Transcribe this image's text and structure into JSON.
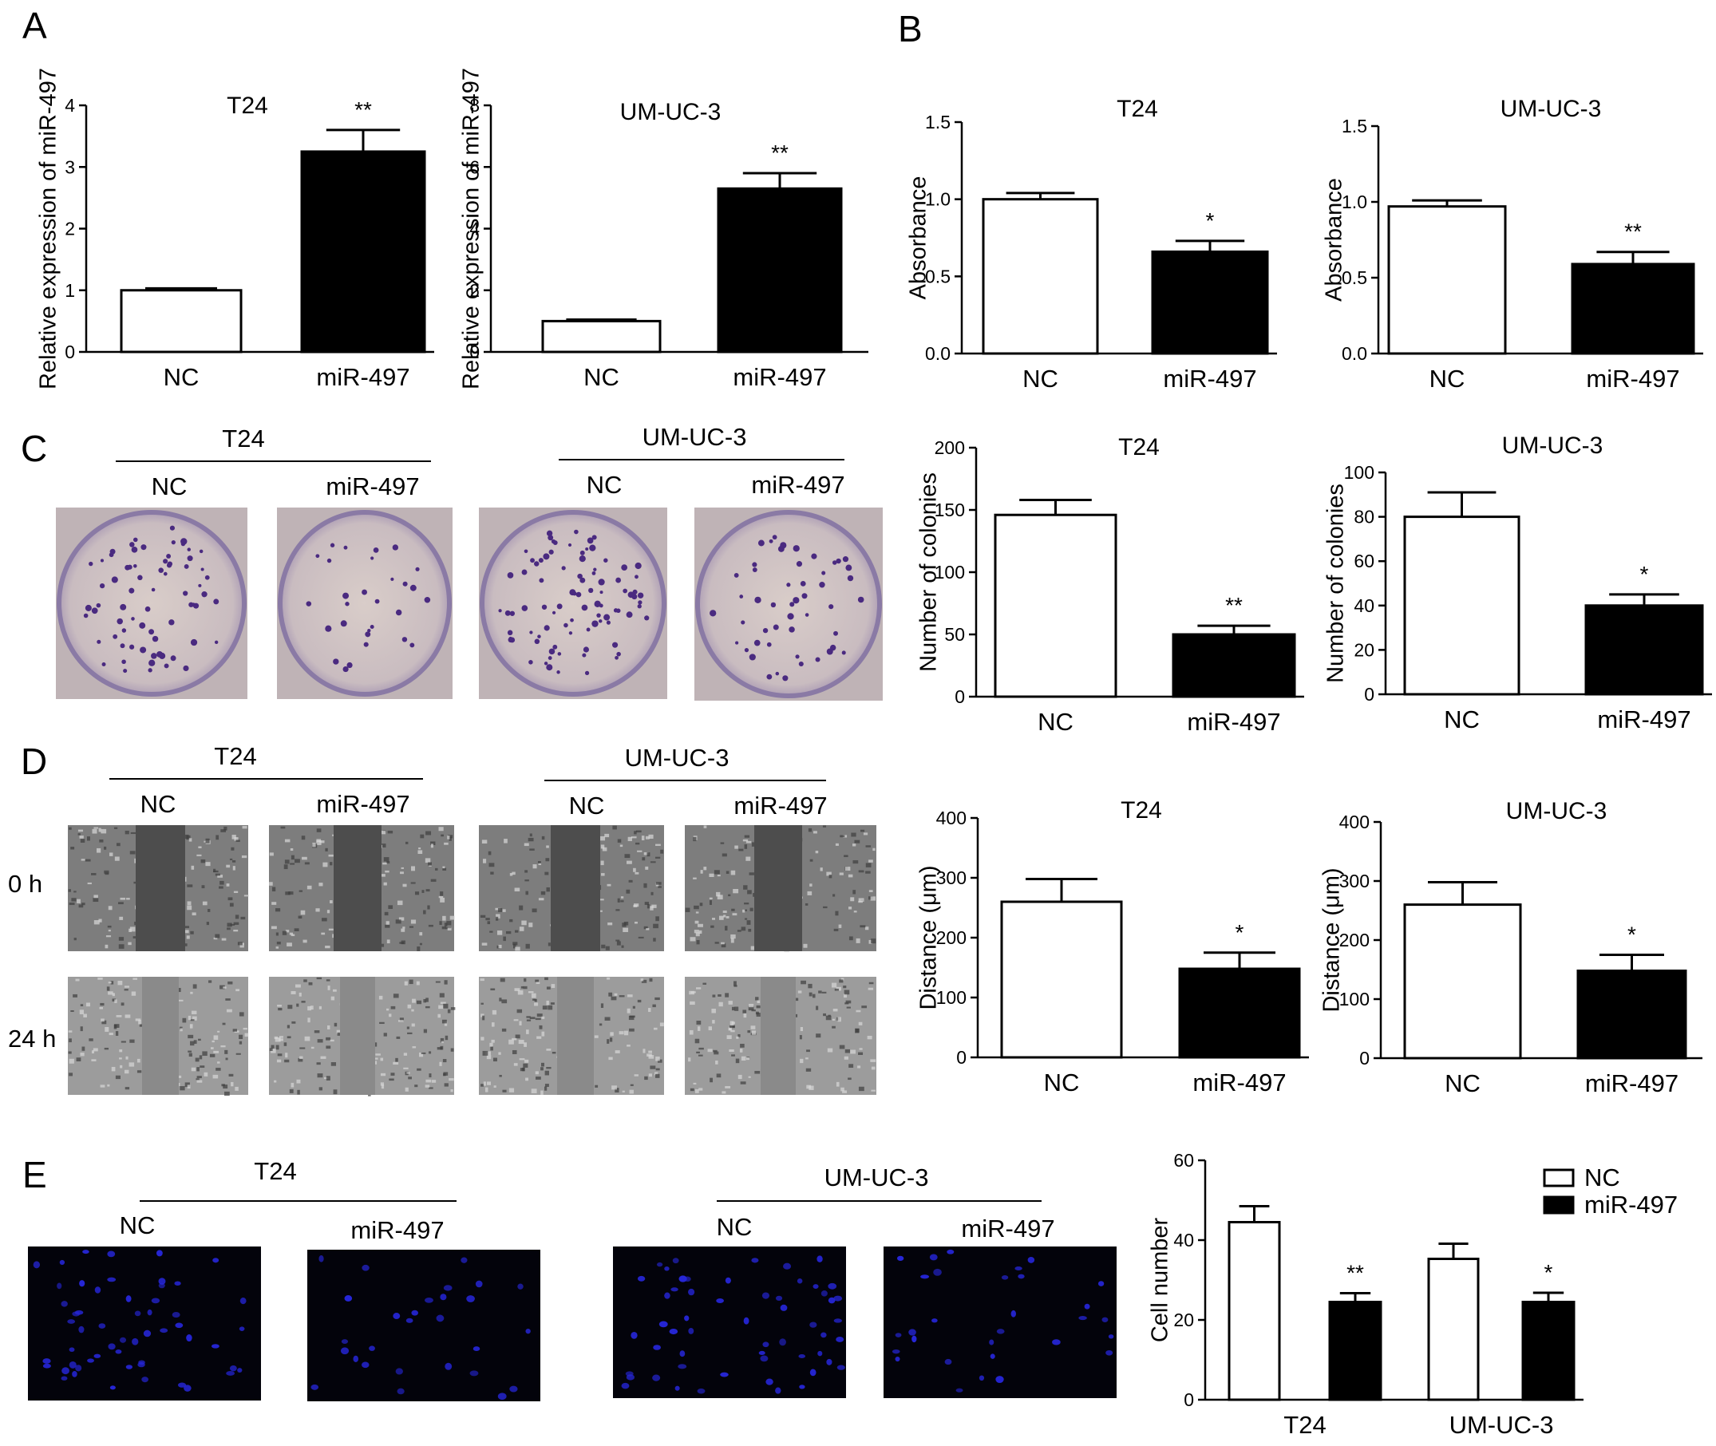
{
  "panels": {
    "A": "A",
    "B": "B",
    "C": "C",
    "D": "D",
    "E": "E"
  },
  "image_labels": {
    "C": {
      "group1": "T24",
      "group2": "UM-UC-3",
      "nc1": "NC",
      "mir1": "miR-497",
      "nc2": "NC",
      "mir2": "miR-497"
    },
    "D": {
      "group1": "T24",
      "group2": "UM-UC-3",
      "nc1": "NC",
      "mir1": "miR-497",
      "nc2": "NC",
      "mir2": "miR-497",
      "row1": "0 h",
      "row2": "24 h"
    },
    "E": {
      "group1": "T24",
      "group2": "UM-UC-3",
      "nc1": "NC",
      "mir1": "miR-497",
      "nc2": "NC",
      "mir2": "miR-497"
    }
  },
  "colors": {
    "nc_fill": "#ffffff",
    "mir_fill": "#000000",
    "colony_well": "#cfc3c6",
    "colony_dot": "#4a2a80",
    "wound_cells": "#7a7a7a",
    "wound_gap": "#4d4d4d",
    "fluor_bg": "#03030b",
    "fluor_nuclei": "#2626d8"
  },
  "chart_data": [
    {
      "type": "bar",
      "title": "T24",
      "ylabel": "Relative expression of miR-497",
      "categories": [
        "NC",
        "miR-497"
      ],
      "values": [
        1.0,
        3.25
      ],
      "errors": [
        0.03,
        0.35
      ],
      "significance": [
        "",
        "**"
      ],
      "ylim": [
        0,
        4
      ],
      "yticks": [
        0,
        1,
        2,
        3,
        4
      ]
    },
    {
      "type": "bar",
      "title": "UM-UC-3",
      "ylabel": "Relative expression of miR-497",
      "categories": [
        "NC",
        "miR-497"
      ],
      "values": [
        1.0,
        5.3
      ],
      "errors": [
        0.05,
        0.5
      ],
      "significance": [
        "",
        "**"
      ],
      "ylim": [
        0,
        8
      ],
      "yticks": [
        0,
        2,
        4,
        6,
        8
      ]
    },
    {
      "type": "bar",
      "title": "T24",
      "ylabel": "Absorbance",
      "categories": [
        "NC",
        "miR-497"
      ],
      "values": [
        1.0,
        0.66
      ],
      "errors": [
        0.04,
        0.07
      ],
      "significance": [
        "",
        "*"
      ],
      "ylim": [
        0,
        1.5
      ],
      "yticks": [
        "0.0",
        "0.5",
        "1.0",
        "1.5"
      ]
    },
    {
      "type": "bar",
      "title": "UM-UC-3",
      "ylabel": "Absorbance",
      "categories": [
        "NC",
        "miR-497"
      ],
      "values": [
        0.97,
        0.59
      ],
      "errors": [
        0.04,
        0.08
      ],
      "significance": [
        "",
        "**"
      ],
      "ylim": [
        0,
        1.5
      ],
      "yticks": [
        "0.0",
        "0.5",
        "1.0",
        "1.5"
      ]
    },
    {
      "type": "bar",
      "title": "T24",
      "ylabel": "Number of colonies",
      "categories": [
        "NC",
        "miR-497"
      ],
      "values": [
        146,
        50
      ],
      "errors": [
        12,
        7
      ],
      "significance": [
        "",
        "**"
      ],
      "ylim": [
        0,
        200
      ],
      "yticks": [
        0,
        50,
        100,
        150,
        200
      ]
    },
    {
      "type": "bar",
      "title": "UM-UC-3",
      "ylabel": "Number of colonies",
      "categories": [
        "NC",
        "miR-497"
      ],
      "values": [
        80,
        40
      ],
      "errors": [
        11,
        5
      ],
      "significance": [
        "",
        "*"
      ],
      "ylim": [
        0,
        100
      ],
      "yticks": [
        0,
        20,
        40,
        60,
        80,
        100
      ]
    },
    {
      "type": "bar",
      "title": "T24",
      "ylabel": "Distance (μm)",
      "categories": [
        "NC",
        "miR-497"
      ],
      "values": [
        260,
        148
      ],
      "errors": [
        38,
        27
      ],
      "significance": [
        "",
        "*"
      ],
      "ylim": [
        0,
        400
      ],
      "yticks": [
        0,
        100,
        200,
        300,
        400
      ]
    },
    {
      "type": "bar",
      "title": "UM-UC-3",
      "ylabel": "Distance (μm)",
      "categories": [
        "NC",
        "miR-497"
      ],
      "values": [
        260,
        148
      ],
      "errors": [
        38,
        27
      ],
      "significance": [
        "",
        "*"
      ],
      "ylim": [
        0,
        400
      ],
      "yticks": [
        0,
        100,
        200,
        300,
        400
      ]
    },
    {
      "type": "bar",
      "title": "",
      "ylabel": "Cell number",
      "categories": [
        "T24",
        "UM-UC-3"
      ],
      "series": [
        {
          "name": "NC",
          "values": [
            44.5,
            35.3
          ],
          "errors": [
            4.0,
            3.8
          ]
        },
        {
          "name": "miR-497",
          "values": [
            24.5,
            24.5
          ],
          "errors": [
            2.2,
            2.3
          ]
        }
      ],
      "significance": [
        [
          "",
          "**"
        ],
        [
          "",
          "*"
        ]
      ],
      "ylim": [
        0,
        60
      ],
      "yticks": [
        0,
        20,
        40,
        60
      ],
      "legend": "top-right"
    }
  ]
}
